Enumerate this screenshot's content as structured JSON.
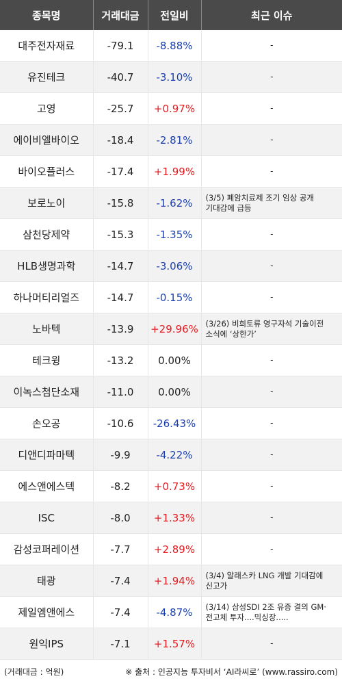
{
  "headers": {
    "name": "종목명",
    "volume": "거래대금",
    "change": "전일비",
    "issue": "최근 이슈"
  },
  "rows": [
    {
      "name": "대주전자재료",
      "volume": "-79.1",
      "change": "-8.88%",
      "direction": "down",
      "issue": "-"
    },
    {
      "name": "유진테크",
      "volume": "-40.7",
      "change": "-3.10%",
      "direction": "down",
      "issue": "-"
    },
    {
      "name": "고영",
      "volume": "-25.7",
      "change": "+0.97%",
      "direction": "up",
      "issue": "-"
    },
    {
      "name": "에이비엘바이오",
      "volume": "-18.4",
      "change": "-2.81%",
      "direction": "down",
      "issue": "-"
    },
    {
      "name": "바이오플러스",
      "volume": "-17.4",
      "change": "+1.99%",
      "direction": "up",
      "issue": "-"
    },
    {
      "name": "보로노이",
      "volume": "-15.8",
      "change": "-1.62%",
      "direction": "down",
      "issue": "(3/5) 폐암치료제 조기 임상 공개 기대감에 급등"
    },
    {
      "name": "삼천당제약",
      "volume": "-15.3",
      "change": "-1.35%",
      "direction": "down",
      "issue": "-"
    },
    {
      "name": "HLB생명과학",
      "volume": "-14.7",
      "change": "-3.06%",
      "direction": "down",
      "issue": "-"
    },
    {
      "name": "하나머티리얼즈",
      "volume": "-14.7",
      "change": "-0.15%",
      "direction": "down",
      "issue": "-"
    },
    {
      "name": "노바텍",
      "volume": "-13.9",
      "change": "+29.96%",
      "direction": "up",
      "issue": "(3/26) 비희토류 영구자석 기술이전 소식에 ‘상한가’"
    },
    {
      "name": "테크윙",
      "volume": "-13.2",
      "change": "0.00%",
      "direction": "flat",
      "issue": "-"
    },
    {
      "name": "이녹스첨단소재",
      "volume": "-11.0",
      "change": "0.00%",
      "direction": "flat",
      "issue": "-"
    },
    {
      "name": "손오공",
      "volume": "-10.6",
      "change": "-26.43%",
      "direction": "down",
      "issue": "-"
    },
    {
      "name": "디앤디파마텍",
      "volume": "-9.9",
      "change": "-4.22%",
      "direction": "down",
      "issue": "-"
    },
    {
      "name": "에스앤에스텍",
      "volume": "-8.2",
      "change": "+0.73%",
      "direction": "up",
      "issue": "-"
    },
    {
      "name": "ISC",
      "volume": "-8.0",
      "change": "+1.33%",
      "direction": "up",
      "issue": "-"
    },
    {
      "name": "감성코퍼레이션",
      "volume": "-7.7",
      "change": "+2.89%",
      "direction": "up",
      "issue": "-"
    },
    {
      "name": "태광",
      "volume": "-7.4",
      "change": "+1.94%",
      "direction": "up",
      "issue": "(3/4) 알래스카 LNG 개발 기대감에 신고가"
    },
    {
      "name": "제일엠앤에스",
      "volume": "-7.4",
      "change": "-4.87%",
      "direction": "down",
      "issue": "(3/14) 삼성SDI 2조 유증 결의 GM·전고체 투자....믹싱장....."
    },
    {
      "name": "원익IPS",
      "volume": "-7.1",
      "change": "+1.57%",
      "direction": "up",
      "issue": "-"
    }
  ],
  "footer": {
    "unit_note": "(거래대금 : 억원)",
    "source_note": "※ 출처 : 인공지능 투자비서 ‘AI라씨로’ (www.rassiro.com)"
  },
  "colors": {
    "header_bg": "#4a4a4a",
    "up": "#e8191f",
    "down": "#1a3fb0",
    "stripe": "#f2f2f2"
  }
}
